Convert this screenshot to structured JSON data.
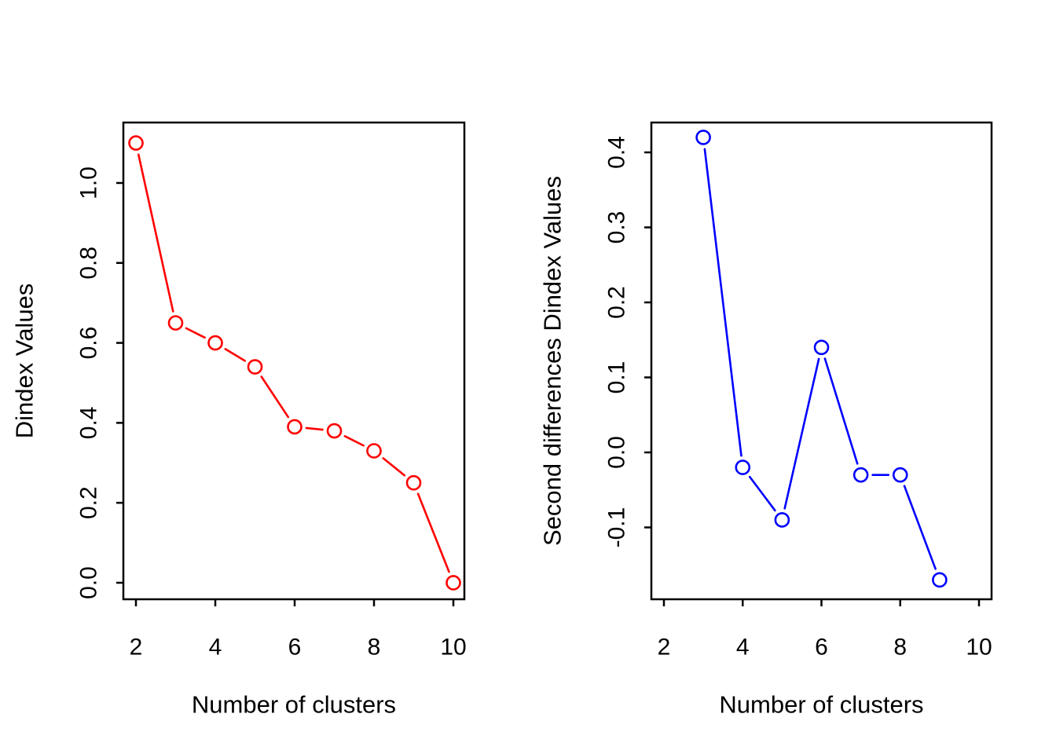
{
  "figure": {
    "background": "#ffffff",
    "axis_color": "#000000",
    "text_color": "#000000"
  },
  "chart_data": [
    {
      "type": "line",
      "panel": "left",
      "title": "",
      "xlabel": "Number of clusters",
      "ylabel": "Dindex Values",
      "grid": false,
      "legend": null,
      "xlim": [
        1.683,
        10.277
      ],
      "ylim": [
        -0.0413,
        1.1512
      ],
      "x_tick_values": [
        2,
        4,
        6,
        8,
        10
      ],
      "x_tick_labels": [
        "2",
        "4",
        "6",
        "8",
        "10"
      ],
      "y_tick_values": [
        0.0,
        0.2,
        0.4,
        0.6,
        0.8,
        1.0
      ],
      "y_tick_labels": [
        "0.0",
        "0.2",
        "0.4",
        "0.6",
        "0.8",
        "1.0"
      ],
      "series": [
        {
          "name": "Dindex",
          "color": "#ff0000",
          "marker": "open-circle",
          "line_style": "solid-with-marker-gaps",
          "x": [
            2,
            3,
            4,
            5,
            6,
            7,
            8,
            9,
            10
          ],
          "y": [
            1.1,
            0.65,
            0.6,
            0.54,
            0.39,
            0.38,
            0.33,
            0.25,
            0.0
          ]
        }
      ]
    },
    {
      "type": "line",
      "panel": "right",
      "title": "",
      "xlabel": "Number of clusters",
      "ylabel": "Second differences Dindex Values",
      "grid": false,
      "legend": null,
      "xlim": [
        1.681,
        10.319
      ],
      "ylim": [
        -0.1958,
        0.4398
      ],
      "x_tick_values": [
        2,
        4,
        6,
        8,
        10
      ],
      "x_tick_labels": [
        "2",
        "4",
        "6",
        "8",
        "10"
      ],
      "y_tick_values": [
        -0.1,
        0.0,
        0.1,
        0.2,
        0.3,
        0.4
      ],
      "y_tick_labels": [
        "-0.1",
        "0.0",
        "0.1",
        "0.2",
        "0.3",
        "0.4"
      ],
      "series": [
        {
          "name": "Second differences Dindex",
          "color": "#0000ff",
          "marker": "open-circle",
          "line_style": "solid-with-marker-gaps",
          "x": [
            3,
            4,
            5,
            6,
            7,
            8,
            9
          ],
          "y": [
            0.42,
            -0.02,
            -0.09,
            0.14,
            -0.03,
            -0.03,
            -0.17
          ]
        }
      ]
    }
  ]
}
